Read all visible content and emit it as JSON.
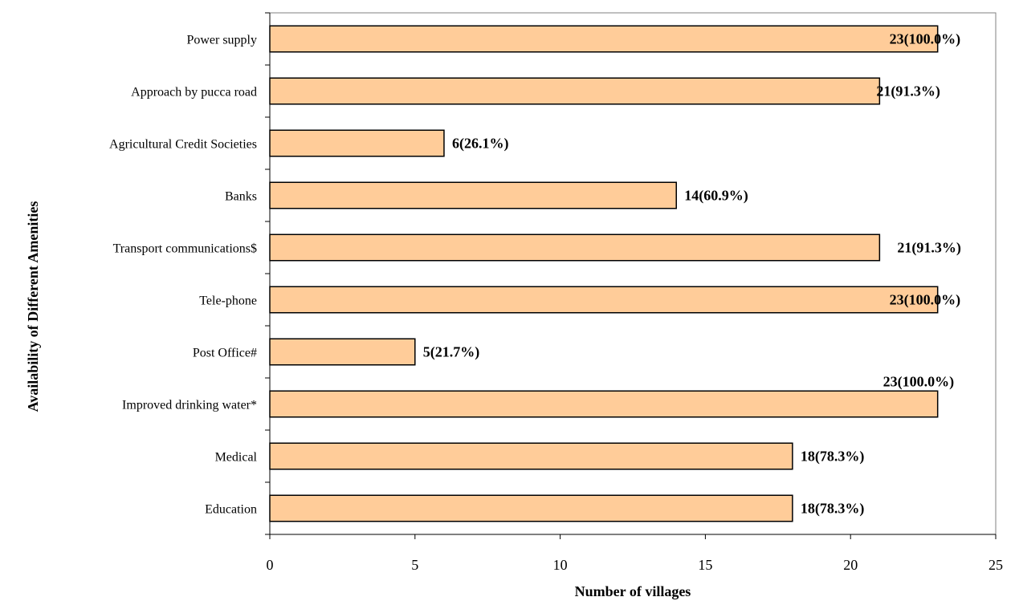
{
  "chart_data": {
    "type": "bar",
    "orientation": "horizontal",
    "title": "",
    "xlabel": "Number of villages",
    "ylabel": "Availability of Different Amenities",
    "xlim": [
      0,
      25
    ],
    "x_ticks": [
      0,
      5,
      10,
      15,
      20,
      25
    ],
    "grid": false,
    "bar_color": "#FFCC99",
    "categories": [
      "Power supply",
      "Approach by pucca  road",
      "Agricultural Credit Societies",
      "Banks",
      "Transport communications$",
      "Tele-phone",
      "Post Office#",
      "Improved  drinking water*",
      "Medical",
      "Education"
    ],
    "values": [
      23,
      21,
      6,
      14,
      21,
      23,
      5,
      23,
      18,
      18
    ],
    "data_labels": [
      "23(100.0%)",
      "21(91.3%)",
      "6(26.1%)",
      "14(60.9%)",
      "21(91.3%)",
      "23(100.0%)",
      "5(21.7%)",
      "23(100.0%)",
      "18(78.3%)",
      "18(78.3%)"
    ]
  }
}
